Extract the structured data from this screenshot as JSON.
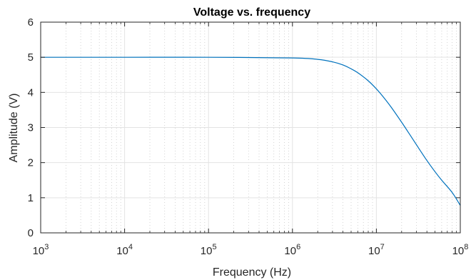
{
  "chart_data": {
    "type": "line",
    "title": "Voltage vs. frequency",
    "xlabel": "Frequency (Hz)",
    "ylabel": "Amplitude (V)",
    "xscale": "log",
    "xlim": [
      1000,
      100000000
    ],
    "ylim": [
      0,
      6
    ],
    "x_ticks": [
      {
        "value": 1000,
        "base": "10",
        "exp": "3"
      },
      {
        "value": 10000,
        "base": "10",
        "exp": "4"
      },
      {
        "value": 100000,
        "base": "10",
        "exp": "5"
      },
      {
        "value": 1000000,
        "base": "10",
        "exp": "6"
      },
      {
        "value": 10000000,
        "base": "10",
        "exp": "7"
      },
      {
        "value": 100000000,
        "base": "10",
        "exp": "8"
      }
    ],
    "y_ticks": [
      "0",
      "1",
      "2",
      "3",
      "4",
      "5",
      "6"
    ],
    "grid": "major and minor",
    "series": [
      {
        "color": "#0072BD",
        "x": [
          1000,
          10000,
          100000,
          1000000,
          2000000,
          3000000,
          4000000,
          5000000,
          6000000,
          8000000,
          10000000,
          12000000,
          15000000,
          20000000,
          25000000,
          30000000,
          40000000,
          50000000,
          60000000,
          80000000,
          100000000
        ],
        "y": [
          5.0,
          5.0,
          5.0,
          4.98,
          4.94,
          4.87,
          4.78,
          4.67,
          4.56,
          4.33,
          4.1,
          3.88,
          3.58,
          3.15,
          2.8,
          2.51,
          2.06,
          1.74,
          1.5,
          1.15,
          0.78
        ]
      }
    ]
  }
}
